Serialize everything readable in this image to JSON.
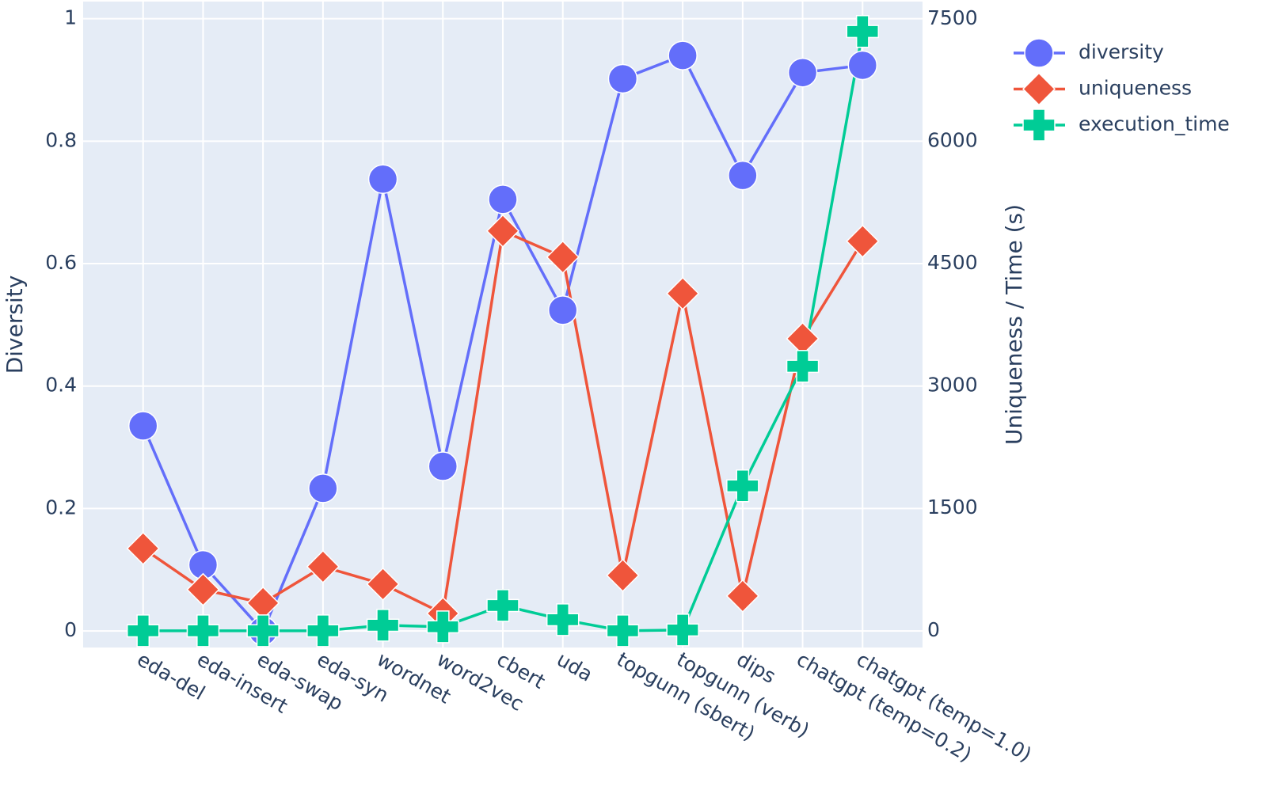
{
  "chart_data": {
    "type": "line",
    "categories": [
      "eda-del",
      "eda-insert",
      "eda-swap",
      "eda-syn",
      "wordnet",
      "word2vec",
      "cbert",
      "uda",
      "topgunn (sbert)",
      "topgunn (verb)",
      "dips",
      "chatgpt (temp=0.2)",
      "chatgpt (temp=1.0)"
    ],
    "series": [
      {
        "name": "diversity",
        "color": "#636efa",
        "marker": "circle",
        "values": [
          0.335,
          0.108,
          0.0,
          0.233,
          0.738,
          0.269,
          0.705,
          0.524,
          0.902,
          0.94,
          0.744,
          0.912,
          0.924
        ]
      },
      {
        "name": "uniqueness",
        "color": "#EF553B",
        "marker": "diamond",
        "axis": "y2",
        "values": [
          1009,
          505,
          340,
          786,
          572,
          213,
          4900,
          4580,
          679,
          4133,
          427,
          3580,
          4774
        ]
      },
      {
        "name": "execution_time",
        "color": "#00cc96",
        "marker": "cross",
        "axis": "y2",
        "values": [
          0,
          0,
          0,
          0,
          68,
          49,
          310,
          136,
          0,
          10,
          1776,
          3241,
          7345
        ]
      }
    ],
    "ylabel": "Diversity",
    "y2label": "Uniqueness / Time (s)",
    "ylim": [
      -0.027,
      1.028
    ],
    "yticks": [
      0,
      0.2,
      0.4,
      0.6,
      0.8,
      1
    ],
    "y2lim": [
      -205,
      7711
    ],
    "y2ticks": [
      0,
      1500,
      3000,
      4500,
      6000,
      7500
    ],
    "grid": true,
    "legend": "outside-right"
  }
}
